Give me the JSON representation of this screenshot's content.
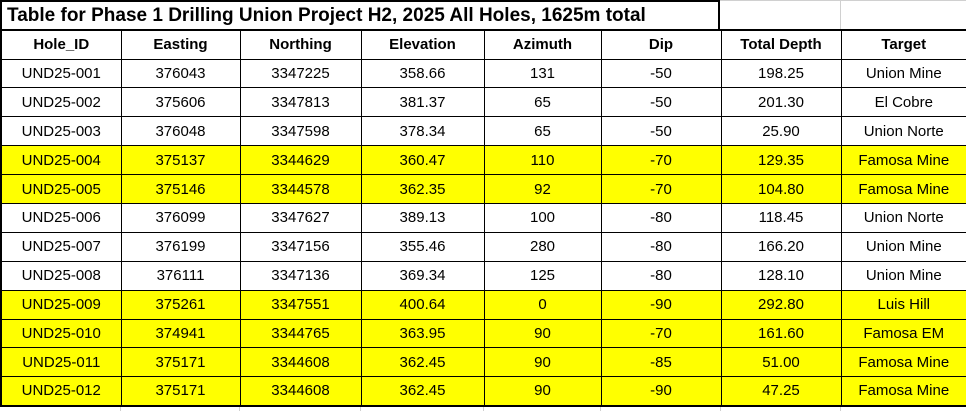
{
  "title": "Table for Phase 1 Drilling Union Project H2, 2025 All Holes, 1625m total",
  "colors": {
    "highlight": "#FFFF00",
    "border": "#000000",
    "gridline": "#D0D0D0",
    "background": "#FFFFFF",
    "text": "#000000"
  },
  "table": {
    "columns": [
      {
        "key": "hole_id",
        "label": "Hole_ID"
      },
      {
        "key": "easting",
        "label": "Easting"
      },
      {
        "key": "northing",
        "label": "Northing"
      },
      {
        "key": "elevation",
        "label": "Elevation"
      },
      {
        "key": "azimuth",
        "label": "Azimuth"
      },
      {
        "key": "dip",
        "label": "Dip"
      },
      {
        "key": "total_depth",
        "label": "Total Depth"
      },
      {
        "key": "target",
        "label": "Target"
      }
    ],
    "rows": [
      {
        "highlighted": false,
        "cells": [
          "UND25-001",
          "376043",
          "3347225",
          "358.66",
          "131",
          "-50",
          "198.25",
          "Union Mine"
        ]
      },
      {
        "highlighted": false,
        "cells": [
          "UND25-002",
          "375606",
          "3347813",
          "381.37",
          "65",
          "-50",
          "201.30",
          "El Cobre"
        ]
      },
      {
        "highlighted": false,
        "cells": [
          "UND25-003",
          "376048",
          "3347598",
          "378.34",
          "65",
          "-50",
          "25.90",
          "Union Norte"
        ]
      },
      {
        "highlighted": true,
        "cells": [
          "UND25-004",
          "375137",
          "3344629",
          "360.47",
          "110",
          "-70",
          "129.35",
          "Famosa Mine"
        ]
      },
      {
        "highlighted": true,
        "cells": [
          "UND25-005",
          "375146",
          "3344578",
          "362.35",
          "92",
          "-70",
          "104.80",
          "Famosa Mine"
        ]
      },
      {
        "highlighted": false,
        "cells": [
          "UND25-006",
          "376099",
          "3347627",
          "389.13",
          "100",
          "-80",
          "118.45",
          "Union Norte"
        ]
      },
      {
        "highlighted": false,
        "cells": [
          "UND25-007",
          "376199",
          "3347156",
          "355.46",
          "280",
          "-80",
          "166.20",
          "Union Mine"
        ]
      },
      {
        "highlighted": false,
        "cells": [
          "UND25-008",
          "376111",
          "3347136",
          "369.34",
          "125",
          "-80",
          "128.10",
          "Union Mine"
        ]
      },
      {
        "highlighted": true,
        "cells": [
          "UND25-009",
          "375261",
          "3347551",
          "400.64",
          "0",
          "-90",
          "292.80",
          "Luis Hill"
        ]
      },
      {
        "highlighted": true,
        "cells": [
          "UND25-010",
          "374941",
          "3344765",
          "363.95",
          "90",
          "-70",
          "161.60",
          "Famosa EM"
        ]
      },
      {
        "highlighted": true,
        "cells": [
          "UND25-011",
          "375171",
          "3344608",
          "362.45",
          "90",
          "-85",
          "51.00",
          "Famosa Mine"
        ]
      },
      {
        "highlighted": true,
        "cells": [
          "UND25-012",
          "375171",
          "3344608",
          "362.45",
          "90",
          "-90",
          "47.25",
          "Famosa Mine"
        ]
      }
    ]
  }
}
